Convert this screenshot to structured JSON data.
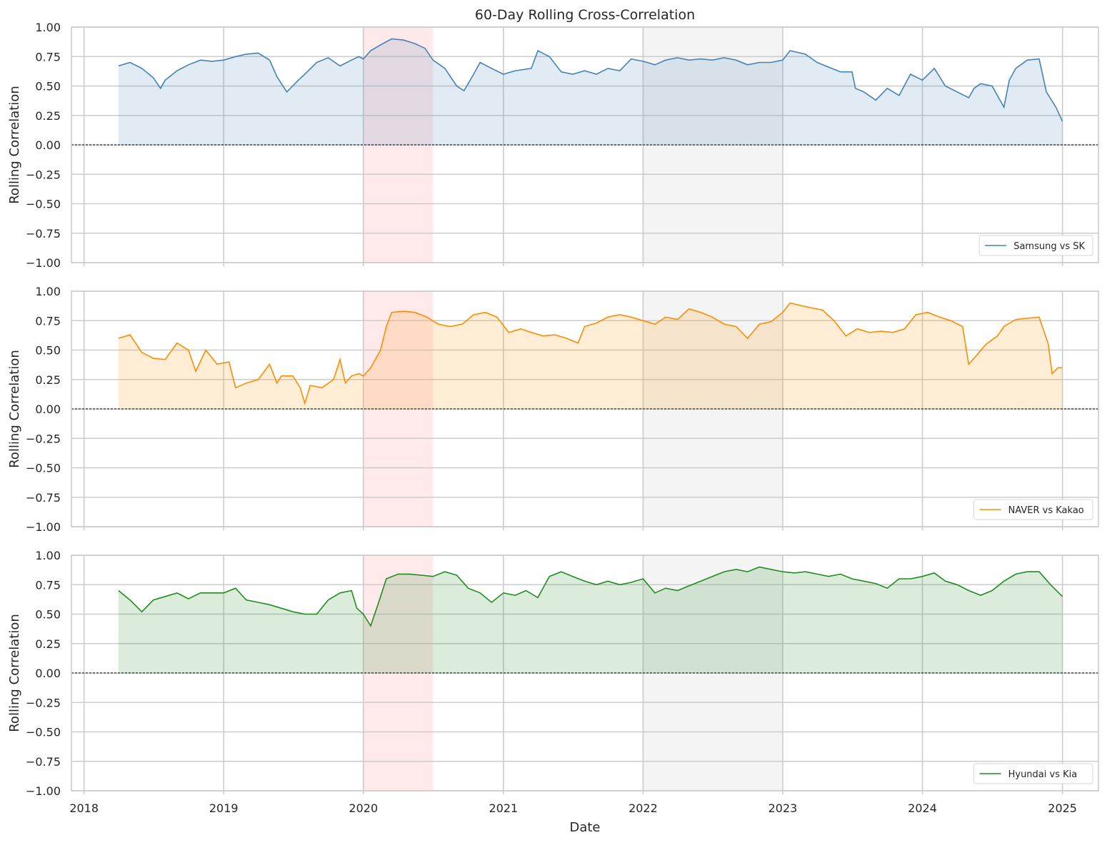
{
  "chart_data": {
    "type": "area",
    "title": "60-Day Rolling Cross-Correlation",
    "xlabel": "Date",
    "ylabel": "Rolling Correlation",
    "x_ticks": [
      "2018",
      "2019",
      "2020",
      "2021",
      "2022",
      "2023",
      "2024",
      "2025"
    ],
    "y_ticks": [
      "1.00",
      "0.75",
      "0.50",
      "0.25",
      "0.00",
      "−0.25",
      "−0.50",
      "−0.75",
      "−1.00"
    ],
    "xlim": [
      "2017-11-29",
      "2025-04-05"
    ],
    "ylim": [
      -1.0,
      1.0
    ],
    "grid": true,
    "legend_position": "lower-right",
    "shaded_periods": [
      {
        "start": "2020-01-01",
        "end": "2020-07-01",
        "color": "#ff9da0"
      },
      {
        "start": "2022-01-01",
        "end": "2023-01-01",
        "color": "#c8c8c8"
      }
    ],
    "zero_line": true,
    "panels": [
      {
        "name": "Samsung vs SK",
        "color": "#4682b4",
        "points": [
          [
            "2018-04-01",
            0.67
          ],
          [
            "2018-05-01",
            0.7
          ],
          [
            "2018-06-01",
            0.65
          ],
          [
            "2018-07-01",
            0.57
          ],
          [
            "2018-07-20",
            0.48
          ],
          [
            "2018-08-01",
            0.55
          ],
          [
            "2018-09-01",
            0.63
          ],
          [
            "2018-10-01",
            0.68
          ],
          [
            "2018-11-01",
            0.72
          ],
          [
            "2018-12-01",
            0.71
          ],
          [
            "2019-01-01",
            0.72
          ],
          [
            "2019-02-01",
            0.75
          ],
          [
            "2019-03-01",
            0.77
          ],
          [
            "2019-04-01",
            0.78
          ],
          [
            "2019-05-01",
            0.72
          ],
          [
            "2019-05-20",
            0.58
          ],
          [
            "2019-06-15",
            0.45
          ],
          [
            "2019-07-15",
            0.55
          ],
          [
            "2019-08-01",
            0.6
          ],
          [
            "2019-09-01",
            0.7
          ],
          [
            "2019-10-01",
            0.74
          ],
          [
            "2019-11-01",
            0.67
          ],
          [
            "2019-12-01",
            0.72
          ],
          [
            "2019-12-20",
            0.75
          ],
          [
            "2020-01-01",
            0.73
          ],
          [
            "2020-01-20",
            0.8
          ],
          [
            "2020-02-15",
            0.85
          ],
          [
            "2020-03-15",
            0.9
          ],
          [
            "2020-04-15",
            0.89
          ],
          [
            "2020-05-15",
            0.86
          ],
          [
            "2020-06-10",
            0.82
          ],
          [
            "2020-07-01",
            0.72
          ],
          [
            "2020-08-01",
            0.65
          ],
          [
            "2020-09-01",
            0.5
          ],
          [
            "2020-09-20",
            0.46
          ],
          [
            "2020-10-15",
            0.6
          ],
          [
            "2020-11-01",
            0.7
          ],
          [
            "2020-12-01",
            0.65
          ],
          [
            "2021-01-01",
            0.6
          ],
          [
            "2021-02-01",
            0.63
          ],
          [
            "2021-03-15",
            0.65
          ],
          [
            "2021-04-01",
            0.8
          ],
          [
            "2021-05-01",
            0.75
          ],
          [
            "2021-06-01",
            0.62
          ],
          [
            "2021-07-01",
            0.6
          ],
          [
            "2021-08-01",
            0.63
          ],
          [
            "2021-09-01",
            0.6
          ],
          [
            "2021-10-01",
            0.65
          ],
          [
            "2021-11-01",
            0.63
          ],
          [
            "2021-12-01",
            0.73
          ],
          [
            "2022-01-01",
            0.71
          ],
          [
            "2022-02-01",
            0.68
          ],
          [
            "2022-03-01",
            0.72
          ],
          [
            "2022-04-01",
            0.74
          ],
          [
            "2022-05-01",
            0.72
          ],
          [
            "2022-06-01",
            0.73
          ],
          [
            "2022-07-01",
            0.72
          ],
          [
            "2022-08-01",
            0.74
          ],
          [
            "2022-09-01",
            0.72
          ],
          [
            "2022-10-01",
            0.68
          ],
          [
            "2022-11-01",
            0.7
          ],
          [
            "2022-12-01",
            0.7
          ],
          [
            "2023-01-01",
            0.72
          ],
          [
            "2023-01-20",
            0.8
          ],
          [
            "2023-03-01",
            0.77
          ],
          [
            "2023-04-01",
            0.7
          ],
          [
            "2023-05-01",
            0.66
          ],
          [
            "2023-06-01",
            0.62
          ],
          [
            "2023-07-01",
            0.62
          ],
          [
            "2023-07-10",
            0.48
          ],
          [
            "2023-08-01",
            0.45
          ],
          [
            "2023-09-01",
            0.38
          ],
          [
            "2023-10-01",
            0.48
          ],
          [
            "2023-11-01",
            0.42
          ],
          [
            "2023-12-01",
            0.6
          ],
          [
            "2024-01-01",
            0.55
          ],
          [
            "2024-02-01",
            0.65
          ],
          [
            "2024-03-01",
            0.5
          ],
          [
            "2024-04-01",
            0.45
          ],
          [
            "2024-05-01",
            0.4
          ],
          [
            "2024-05-15",
            0.48
          ],
          [
            "2024-06-01",
            0.52
          ],
          [
            "2024-07-01",
            0.5
          ],
          [
            "2024-08-01",
            0.32
          ],
          [
            "2024-08-15",
            0.55
          ],
          [
            "2024-09-01",
            0.65
          ],
          [
            "2024-10-01",
            0.72
          ],
          [
            "2024-11-01",
            0.73
          ],
          [
            "2024-11-20",
            0.45
          ],
          [
            "2024-12-15",
            0.32
          ],
          [
            "2025-01-01",
            0.2
          ]
        ]
      },
      {
        "name": "NAVER vs Kakao",
        "color": "#ff8c00",
        "points": [
          [
            "2018-04-01",
            0.6
          ],
          [
            "2018-05-01",
            0.63
          ],
          [
            "2018-06-01",
            0.48
          ],
          [
            "2018-07-01",
            0.43
          ],
          [
            "2018-08-01",
            0.42
          ],
          [
            "2018-09-01",
            0.56
          ],
          [
            "2018-10-01",
            0.5
          ],
          [
            "2018-10-20",
            0.32
          ],
          [
            "2018-11-15",
            0.5
          ],
          [
            "2018-12-15",
            0.38
          ],
          [
            "2019-01-15",
            0.4
          ],
          [
            "2019-02-01",
            0.18
          ],
          [
            "2019-03-01",
            0.22
          ],
          [
            "2019-04-01",
            0.25
          ],
          [
            "2019-05-01",
            0.38
          ],
          [
            "2019-05-20",
            0.22
          ],
          [
            "2019-06-01",
            0.28
          ],
          [
            "2019-07-01",
            0.28
          ],
          [
            "2019-07-20",
            0.18
          ],
          [
            "2019-08-01",
            0.05
          ],
          [
            "2019-08-15",
            0.2
          ],
          [
            "2019-09-15",
            0.18
          ],
          [
            "2019-10-15",
            0.25
          ],
          [
            "2019-11-01",
            0.42
          ],
          [
            "2019-11-15",
            0.22
          ],
          [
            "2019-12-01",
            0.28
          ],
          [
            "2019-12-20",
            0.3
          ],
          [
            "2020-01-01",
            0.28
          ],
          [
            "2020-01-20",
            0.35
          ],
          [
            "2020-02-15",
            0.5
          ],
          [
            "2020-03-01",
            0.7
          ],
          [
            "2020-03-15",
            0.82
          ],
          [
            "2020-04-15",
            0.83
          ],
          [
            "2020-05-15",
            0.82
          ],
          [
            "2020-06-15",
            0.78
          ],
          [
            "2020-07-15",
            0.72
          ],
          [
            "2020-08-15",
            0.7
          ],
          [
            "2020-09-15",
            0.72
          ],
          [
            "2020-10-15",
            0.8
          ],
          [
            "2020-11-15",
            0.82
          ],
          [
            "2020-12-15",
            0.78
          ],
          [
            "2021-01-15",
            0.65
          ],
          [
            "2021-02-15",
            0.68
          ],
          [
            "2021-03-15",
            0.65
          ],
          [
            "2021-04-15",
            0.62
          ],
          [
            "2021-05-15",
            0.63
          ],
          [
            "2021-06-15",
            0.6
          ],
          [
            "2021-07-15",
            0.56
          ],
          [
            "2021-08-01",
            0.7
          ],
          [
            "2021-09-01",
            0.73
          ],
          [
            "2021-10-01",
            0.78
          ],
          [
            "2021-11-01",
            0.8
          ],
          [
            "2021-12-01",
            0.78
          ],
          [
            "2022-01-01",
            0.75
          ],
          [
            "2022-02-01",
            0.72
          ],
          [
            "2022-03-01",
            0.78
          ],
          [
            "2022-04-01",
            0.76
          ],
          [
            "2022-05-01",
            0.85
          ],
          [
            "2022-06-01",
            0.82
          ],
          [
            "2022-07-01",
            0.78
          ],
          [
            "2022-08-01",
            0.72
          ],
          [
            "2022-09-01",
            0.7
          ],
          [
            "2022-10-01",
            0.6
          ],
          [
            "2022-11-01",
            0.72
          ],
          [
            "2022-12-01",
            0.74
          ],
          [
            "2023-01-01",
            0.82
          ],
          [
            "2023-01-20",
            0.9
          ],
          [
            "2023-02-15",
            0.88
          ],
          [
            "2023-03-15",
            0.86
          ],
          [
            "2023-04-15",
            0.84
          ],
          [
            "2023-05-15",
            0.75
          ],
          [
            "2023-06-15",
            0.62
          ],
          [
            "2023-07-15",
            0.68
          ],
          [
            "2023-08-15",
            0.65
          ],
          [
            "2023-09-15",
            0.66
          ],
          [
            "2023-10-15",
            0.65
          ],
          [
            "2023-11-15",
            0.68
          ],
          [
            "2023-12-15",
            0.8
          ],
          [
            "2024-01-15",
            0.82
          ],
          [
            "2024-02-15",
            0.78
          ],
          [
            "2024-03-15",
            0.75
          ],
          [
            "2024-04-15",
            0.7
          ],
          [
            "2024-05-01",
            0.38
          ],
          [
            "2024-05-20",
            0.45
          ],
          [
            "2024-06-15",
            0.55
          ],
          [
            "2024-07-15",
            0.62
          ],
          [
            "2024-08-01",
            0.7
          ],
          [
            "2024-09-01",
            0.76
          ],
          [
            "2024-10-01",
            0.77
          ],
          [
            "2024-11-01",
            0.78
          ],
          [
            "2024-11-25",
            0.55
          ],
          [
            "2024-12-05",
            0.3
          ],
          [
            "2024-12-20",
            0.35
          ],
          [
            "2025-01-01",
            0.35
          ]
        ]
      },
      {
        "name": "Hyundai vs Kia",
        "color": "#228b22",
        "points": [
          [
            "2018-04-01",
            0.7
          ],
          [
            "2018-05-01",
            0.62
          ],
          [
            "2018-06-01",
            0.52
          ],
          [
            "2018-07-01",
            0.62
          ],
          [
            "2018-08-01",
            0.65
          ],
          [
            "2018-09-01",
            0.68
          ],
          [
            "2018-10-01",
            0.63
          ],
          [
            "2018-11-01",
            0.68
          ],
          [
            "2018-12-01",
            0.68
          ],
          [
            "2019-01-01",
            0.68
          ],
          [
            "2019-02-01",
            0.72
          ],
          [
            "2019-03-01",
            0.62
          ],
          [
            "2019-04-01",
            0.6
          ],
          [
            "2019-05-01",
            0.58
          ],
          [
            "2019-06-01",
            0.55
          ],
          [
            "2019-07-01",
            0.52
          ],
          [
            "2019-08-01",
            0.5
          ],
          [
            "2019-09-01",
            0.5
          ],
          [
            "2019-10-01",
            0.62
          ],
          [
            "2019-11-01",
            0.68
          ],
          [
            "2019-12-01",
            0.7
          ],
          [
            "2019-12-15",
            0.55
          ],
          [
            "2020-01-01",
            0.5
          ],
          [
            "2020-01-20",
            0.4
          ],
          [
            "2020-02-10",
            0.6
          ],
          [
            "2020-03-01",
            0.8
          ],
          [
            "2020-04-01",
            0.84
          ],
          [
            "2020-05-01",
            0.84
          ],
          [
            "2020-06-01",
            0.83
          ],
          [
            "2020-07-01",
            0.82
          ],
          [
            "2020-08-01",
            0.86
          ],
          [
            "2020-09-01",
            0.83
          ],
          [
            "2020-10-01",
            0.72
          ],
          [
            "2020-11-01",
            0.68
          ],
          [
            "2020-12-01",
            0.6
          ],
          [
            "2021-01-01",
            0.68
          ],
          [
            "2021-02-01",
            0.66
          ],
          [
            "2021-03-01",
            0.7
          ],
          [
            "2021-04-01",
            0.64
          ],
          [
            "2021-05-01",
            0.82
          ],
          [
            "2021-06-01",
            0.86
          ],
          [
            "2021-07-01",
            0.82
          ],
          [
            "2021-08-01",
            0.78
          ],
          [
            "2021-09-01",
            0.75
          ],
          [
            "2021-10-01",
            0.78
          ],
          [
            "2021-11-01",
            0.75
          ],
          [
            "2021-12-01",
            0.77
          ],
          [
            "2022-01-01",
            0.8
          ],
          [
            "2022-02-01",
            0.68
          ],
          [
            "2022-03-01",
            0.72
          ],
          [
            "2022-04-01",
            0.7
          ],
          [
            "2022-05-01",
            0.74
          ],
          [
            "2022-06-01",
            0.78
          ],
          [
            "2022-07-01",
            0.82
          ],
          [
            "2022-08-01",
            0.86
          ],
          [
            "2022-09-01",
            0.88
          ],
          [
            "2022-10-01",
            0.86
          ],
          [
            "2022-11-01",
            0.9
          ],
          [
            "2022-12-01",
            0.88
          ],
          [
            "2023-01-01",
            0.86
          ],
          [
            "2023-02-01",
            0.85
          ],
          [
            "2023-03-01",
            0.86
          ],
          [
            "2023-04-01",
            0.84
          ],
          [
            "2023-05-01",
            0.82
          ],
          [
            "2023-06-01",
            0.84
          ],
          [
            "2023-07-01",
            0.8
          ],
          [
            "2023-08-01",
            0.78
          ],
          [
            "2023-09-01",
            0.76
          ],
          [
            "2023-10-01",
            0.72
          ],
          [
            "2023-11-01",
            0.8
          ],
          [
            "2023-12-01",
            0.8
          ],
          [
            "2024-01-01",
            0.82
          ],
          [
            "2024-02-01",
            0.85
          ],
          [
            "2024-03-01",
            0.78
          ],
          [
            "2024-04-01",
            0.75
          ],
          [
            "2024-05-01",
            0.7
          ],
          [
            "2024-06-01",
            0.66
          ],
          [
            "2024-07-01",
            0.7
          ],
          [
            "2024-08-01",
            0.78
          ],
          [
            "2024-09-01",
            0.84
          ],
          [
            "2024-10-01",
            0.86
          ],
          [
            "2024-11-01",
            0.86
          ],
          [
            "2024-12-01",
            0.75
          ],
          [
            "2025-01-01",
            0.65
          ]
        ]
      }
    ]
  }
}
